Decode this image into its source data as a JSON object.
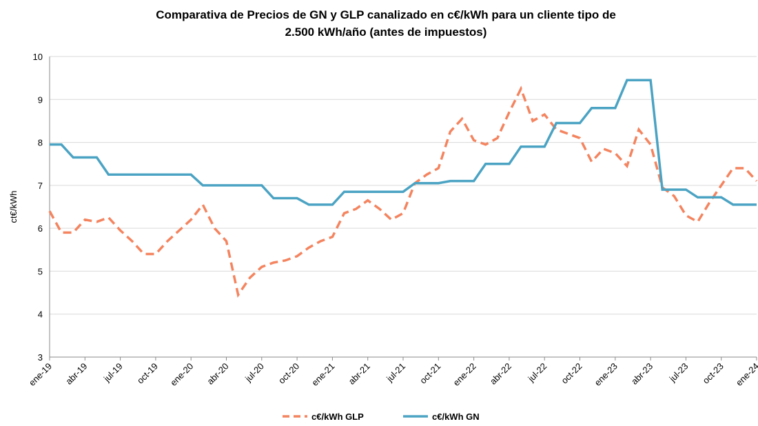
{
  "chart_data": {
    "type": "line",
    "title": [
      "Comparativa de Precios de GN y GLP canalizado en c€/kWh para un cliente tipo de",
      "2.500 kWh/año (antes de impuestos)"
    ],
    "ylabel": "ct€/kWh",
    "categories": [
      "ene-19",
      null,
      null,
      "abr-19",
      null,
      null,
      "jul-19",
      null,
      null,
      "oct-19",
      null,
      null,
      "ene-20",
      null,
      null,
      "abr-20",
      null,
      null,
      "jul-20",
      null,
      null,
      "oct-20",
      null,
      null,
      "ene-21",
      null,
      null,
      "abr-21",
      null,
      null,
      "jul-21",
      null,
      null,
      "oct-21",
      null,
      null,
      "ene-22",
      null,
      null,
      "abr-22",
      null,
      null,
      "jul-22",
      null,
      null,
      "oct-22",
      null,
      null,
      "ene-23",
      null,
      null,
      "abr-23",
      null,
      null,
      "jul-23",
      null,
      null,
      "oct-23",
      null,
      null,
      "ene-24"
    ],
    "series": [
      {
        "name": "c€/kWh GLP",
        "color": "#f4845f",
        "dashed": true,
        "values": [
          6.4,
          5.9,
          5.9,
          6.2,
          6.15,
          6.25,
          5.95,
          5.7,
          5.4,
          5.4,
          5.7,
          5.95,
          6.2,
          6.55,
          6.0,
          5.7,
          4.45,
          4.85,
          5.1,
          5.2,
          5.25,
          5.35,
          5.55,
          5.7,
          5.8,
          6.35,
          6.45,
          6.65,
          6.45,
          6.2,
          6.35,
          7.05,
          7.25,
          7.4,
          8.25,
          8.55,
          8.05,
          7.95,
          8.1,
          8.7,
          9.25,
          8.5,
          8.65,
          8.3,
          8.2,
          8.1,
          7.55,
          7.85,
          7.75,
          7.45,
          8.3,
          7.95,
          6.95,
          6.75,
          6.3,
          6.15,
          6.6,
          7.0,
          7.4,
          7.4,
          7.1
        ]
      },
      {
        "name": "c€/kWh GN",
        "color": "#4ba3c3",
        "dashed": false,
        "values": [
          7.95,
          7.95,
          7.65,
          7.65,
          7.65,
          7.25,
          7.25,
          7.25,
          7.25,
          7.25,
          7.25,
          7.25,
          7.25,
          7.0,
          7.0,
          7.0,
          7.0,
          7.0,
          7.0,
          6.7,
          6.7,
          6.7,
          6.55,
          6.55,
          6.55,
          6.85,
          6.85,
          6.85,
          6.85,
          6.85,
          6.85,
          7.05,
          7.05,
          7.05,
          7.1,
          7.1,
          7.1,
          7.5,
          7.5,
          7.5,
          7.9,
          7.9,
          7.9,
          8.45,
          8.45,
          8.45,
          8.8,
          8.8,
          8.8,
          9.45,
          9.45,
          9.45,
          6.9,
          6.9,
          6.9,
          6.72,
          6.72,
          6.72,
          6.55,
          6.55,
          6.55
        ]
      }
    ],
    "ylim": [
      3,
      10
    ],
    "yticks": [
      3,
      4,
      5,
      6,
      7,
      8,
      9,
      10
    ],
    "grid": true,
    "legend": "bottom"
  }
}
